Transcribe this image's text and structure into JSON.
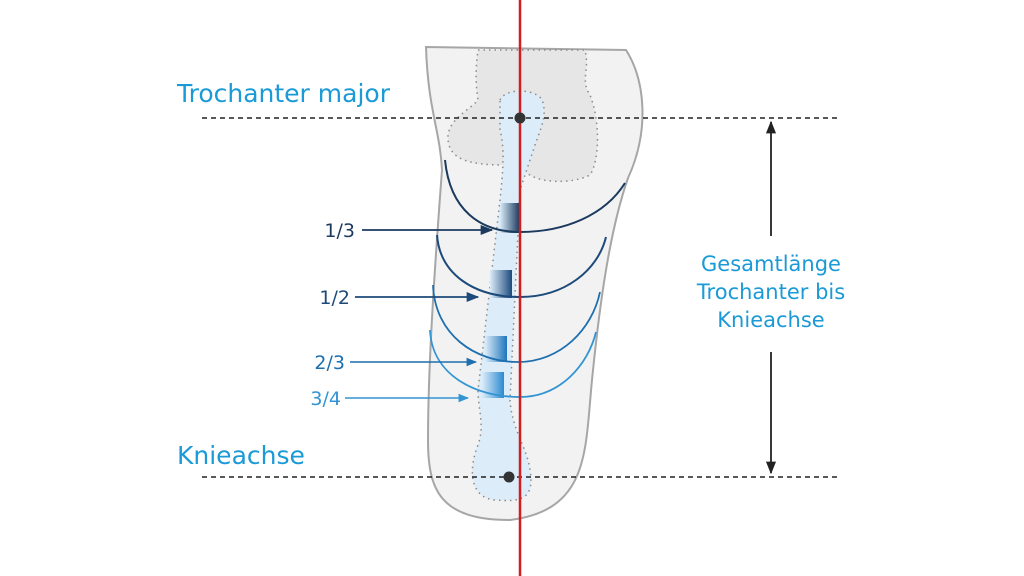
{
  "labels": {
    "trochanter": "Trochanter major",
    "knee": "Knieachse",
    "total_length": [
      "Gesamtlänge",
      "Trochanter bis",
      "Knieachse"
    ]
  },
  "levels": [
    {
      "label": "1/3",
      "color": "#1b3a5e"
    },
    {
      "label": "1/2",
      "color": "#1c4a7a"
    },
    {
      "label": "2/3",
      "color": "#1d6fae"
    },
    {
      "label": "3/4",
      "color": "#3394d3"
    }
  ],
  "colors": {
    "title_blue": "#1a9ad6",
    "axis_red": "#d11f1f",
    "leg_fill": "#f2f2f2",
    "leg_outline": "#a6a6a6",
    "bone_fill": "#dcecf9"
  }
}
